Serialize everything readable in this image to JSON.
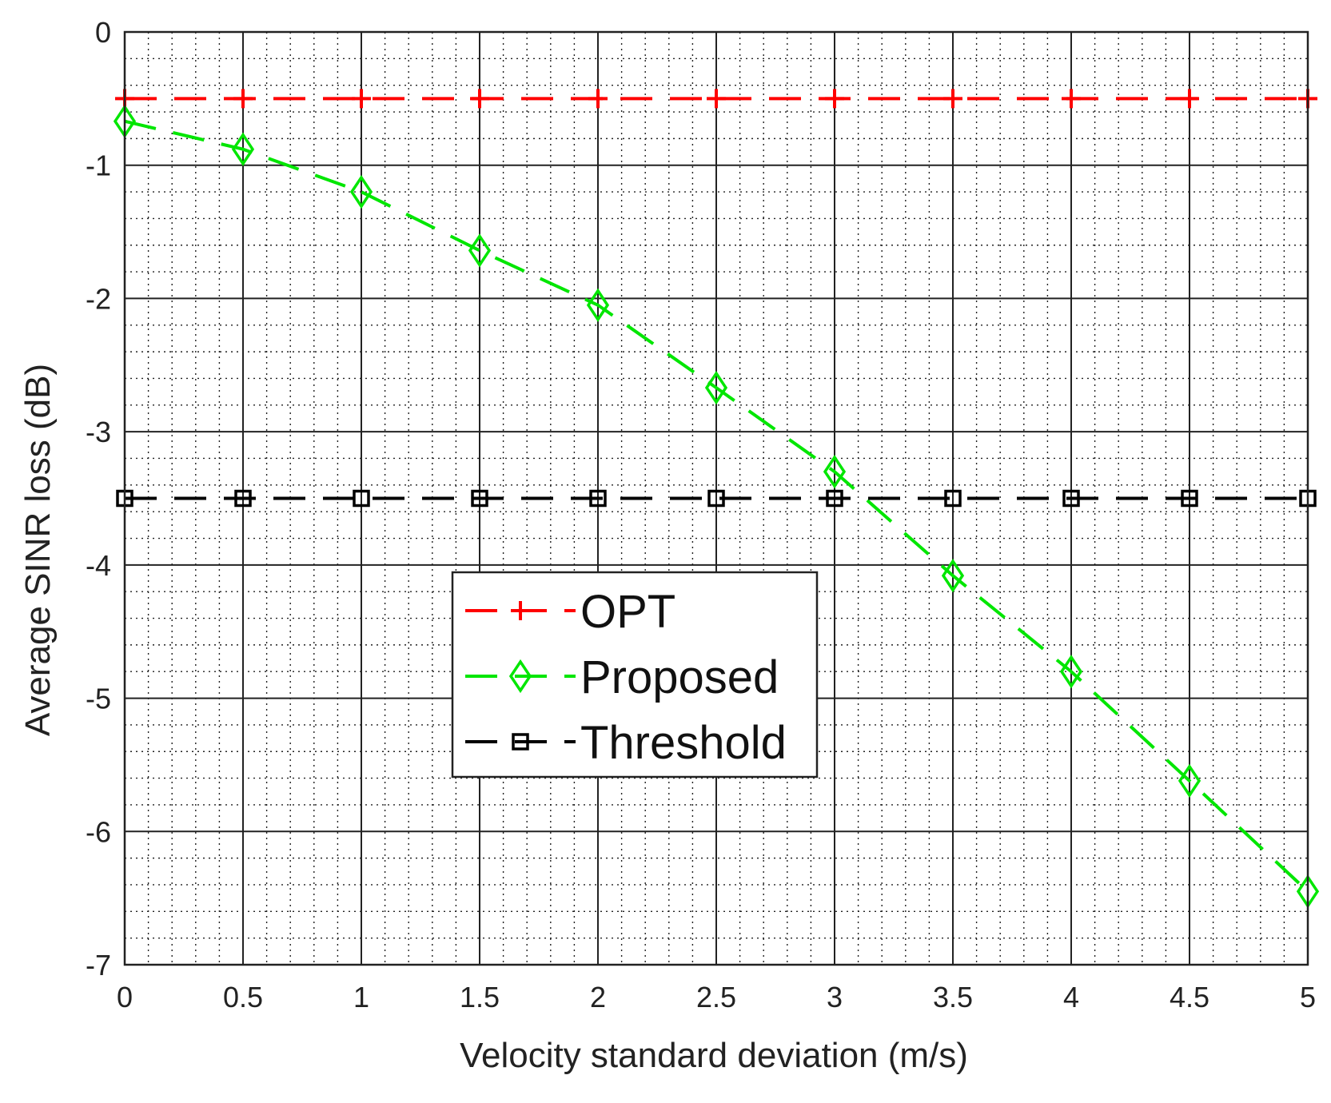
{
  "chart_data": {
    "type": "line",
    "title": "",
    "xlabel": "Velocity standard deviation (m/s)",
    "ylabel": "Average SINR loss (dB)",
    "xlim": [
      0,
      5
    ],
    "ylim": [
      -7,
      0
    ],
    "xticks": [
      0,
      0.5,
      1,
      1.5,
      2,
      2.5,
      3,
      3.5,
      4,
      4.5,
      5
    ],
    "xtick_labels": [
      "0",
      "0.5",
      "1",
      "1.5",
      "2",
      "2.5",
      "3",
      "3.5",
      "4",
      "4.5",
      "5"
    ],
    "yticks": [
      0,
      -1,
      -2,
      -3,
      -4,
      -5,
      -6,
      -7
    ],
    "ytick_labels": [
      "0",
      "-1",
      "-2",
      "-3",
      "-4",
      "-5",
      "-6",
      "-7"
    ],
    "grid": "major solid, minor dotted",
    "legend_position": "center",
    "x": [
      0,
      0.5,
      1,
      1.5,
      2,
      2.5,
      3,
      3.5,
      4,
      4.5,
      5
    ],
    "series": [
      {
        "name": "OPT",
        "color": "#ff0000",
        "marker": "plus",
        "values": [
          -0.5,
          -0.5,
          -0.5,
          -0.5,
          -0.5,
          -0.5,
          -0.5,
          -0.5,
          -0.5,
          -0.5,
          -0.5
        ]
      },
      {
        "name": "Proposed",
        "color": "#00e600",
        "marker": "diamond",
        "values": [
          -0.67,
          -0.88,
          -1.2,
          -1.64,
          -2.05,
          -2.67,
          -3.3,
          -4.08,
          -4.8,
          -5.62,
          -6.45
        ]
      },
      {
        "name": "Threshold",
        "color": "#000000",
        "marker": "square",
        "values": [
          -3.5,
          -3.5,
          -3.5,
          -3.5,
          -3.5,
          -3.5,
          -3.5,
          -3.5,
          -3.5,
          -3.5,
          -3.5
        ]
      }
    ]
  }
}
